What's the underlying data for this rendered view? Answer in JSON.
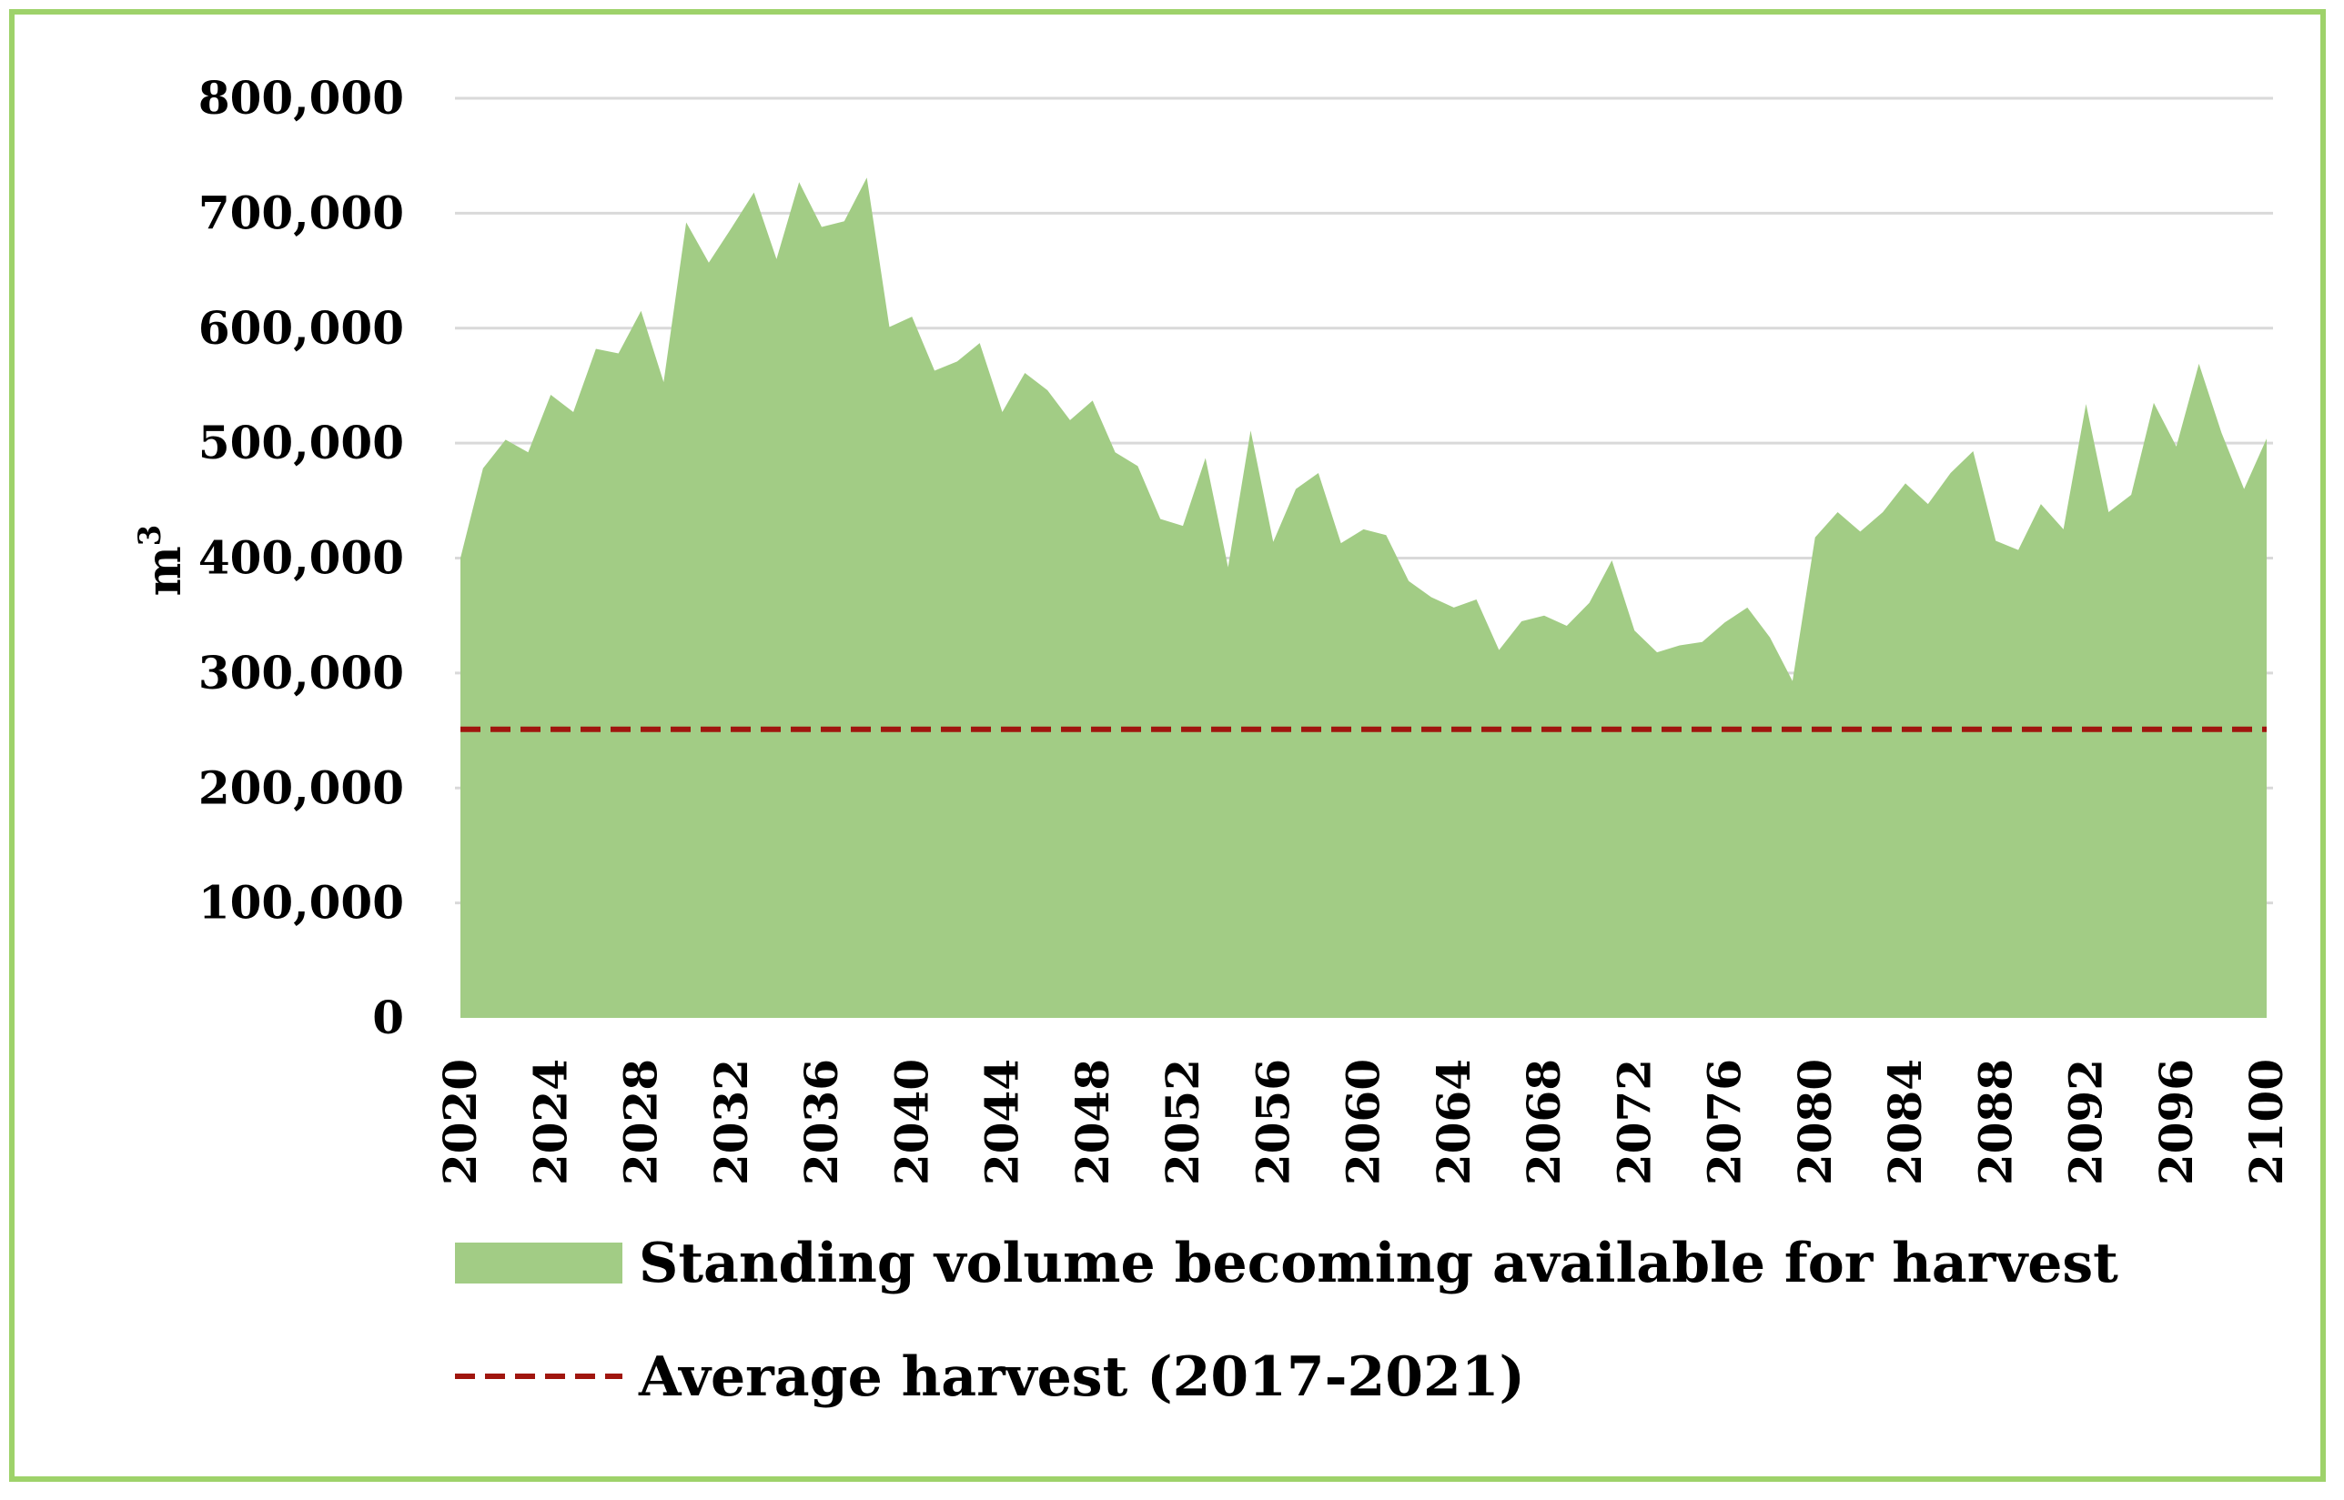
{
  "chart_data": {
    "type": "area",
    "title": "",
    "xlabel": "",
    "ylabel": "m",
    "ylabel_superscript": "3",
    "ylim": [
      0,
      800000
    ],
    "yticks": [
      0,
      100000,
      200000,
      300000,
      400000,
      500000,
      600000,
      700000,
      800000
    ],
    "ytick_labels": [
      "0",
      "100,000",
      "200,000",
      "300,000",
      "400,000",
      "500,000",
      "600,000",
      "700,000",
      "800,000"
    ],
    "xlim": [
      2020,
      2100
    ],
    "xticks": [
      "2020",
      "2024",
      "2028",
      "2032",
      "2036",
      "2040",
      "2044",
      "2048",
      "2052",
      "2056",
      "2060",
      "2064",
      "2068",
      "2072",
      "2076",
      "2080",
      "2084",
      "2088",
      "2092",
      "2096",
      "2100"
    ],
    "grid": true,
    "legend_position": "bottom",
    "colors": {
      "area": "#a2cc85",
      "line": "#a0150e",
      "grid": "#d9d9d9",
      "frame": "#9ed26a"
    },
    "series": [
      {
        "name": "Standing volume becoming available for harvest",
        "type": "area",
        "x": [
          2020,
          2021,
          2022,
          2023,
          2024,
          2025,
          2026,
          2027,
          2028,
          2029,
          2030,
          2031,
          2032,
          2033,
          2034,
          2035,
          2036,
          2037,
          2038,
          2039,
          2040,
          2041,
          2042,
          2043,
          2044,
          2045,
          2046,
          2047,
          2048,
          2049,
          2050,
          2051,
          2052,
          2053,
          2054,
          2055,
          2056,
          2057,
          2058,
          2059,
          2060,
          2061,
          2062,
          2063,
          2064,
          2065,
          2066,
          2067,
          2068,
          2069,
          2070,
          2071,
          2072,
          2073,
          2074,
          2075,
          2076,
          2077,
          2078,
          2079,
          2080,
          2081,
          2082,
          2083,
          2084,
          2085,
          2086,
          2087,
          2088,
          2089,
          2090,
          2091,
          2092,
          2093,
          2094,
          2095,
          2096,
          2097,
          2098,
          2099,
          2100
        ],
        "values": [
          400000,
          478000,
          503000,
          492000,
          542000,
          527000,
          582000,
          578000,
          615000,
          553000,
          692000,
          657000,
          687000,
          718000,
          660000,
          727000,
          688000,
          693000,
          731000,
          601000,
          610000,
          563000,
          571000,
          587000,
          527000,
          561000,
          546000,
          520000,
          537000,
          492000,
          480000,
          434000,
          428000,
          487000,
          392000,
          511000,
          414000,
          460000,
          474000,
          413000,
          425000,
          420000,
          380000,
          366000,
          357000,
          364000,
          320000,
          345000,
          350000,
          341000,
          361000,
          398000,
          337000,
          318000,
          324000,
          327000,
          344000,
          357000,
          331000,
          293000,
          418000,
          440000,
          423000,
          440000,
          465000,
          447000,
          474000,
          493000,
          415000,
          407000,
          447000,
          425000,
          534000,
          440000,
          455000,
          535000,
          497000,
          569000,
          509000,
          460000,
          504000
        ]
      },
      {
        "name": "Average harvest (2017-2021)",
        "type": "line",
        "style": "dashed",
        "value": 251000
      }
    ]
  }
}
